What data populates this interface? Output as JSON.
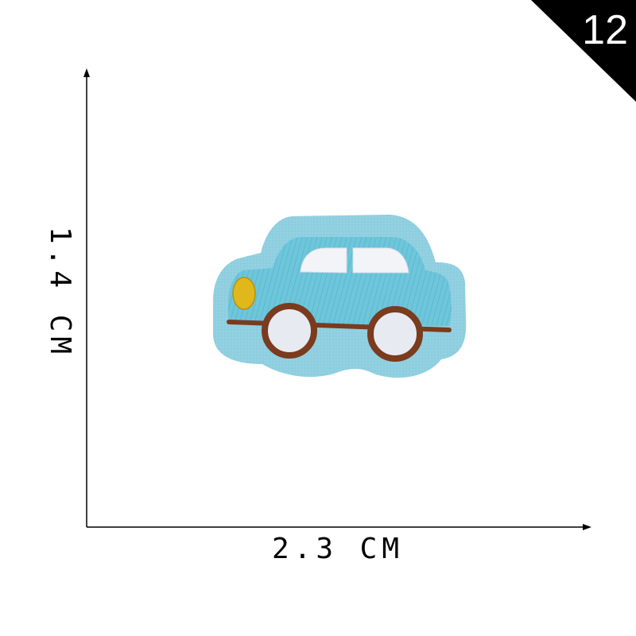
{
  "badge": {
    "number": "12",
    "background_color": "#000000",
    "text_color": "#ffffff"
  },
  "dimensions": {
    "width_label": "2.3 CM",
    "height_label": "1.4 CM"
  },
  "patch": {
    "subject": "embroidered car patch",
    "colors": {
      "felt": "#8fcfe0",
      "body": "#6ec6db",
      "windows": "#f2f4f8",
      "headlight": "#e0b81c",
      "trim": "#7a3b1e",
      "hubs": "#e8eaf2"
    }
  }
}
